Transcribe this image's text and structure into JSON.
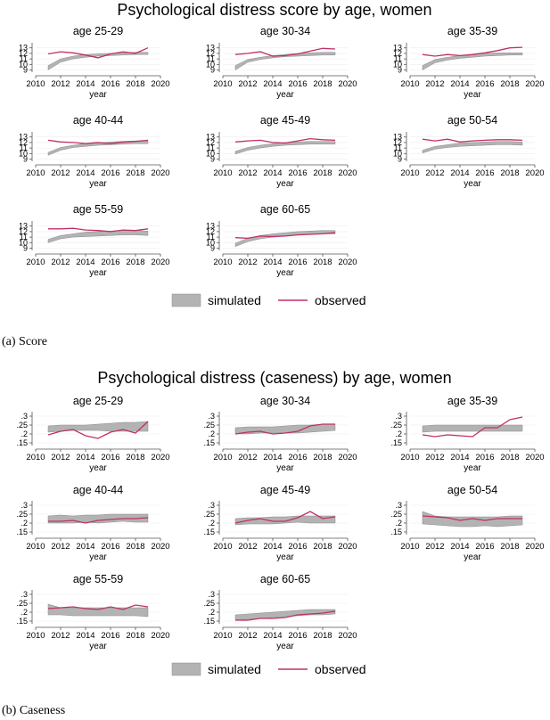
{
  "figure_a": {
    "title": "Psychological distress score by age, women",
    "caption": "(a)  Score",
    "legend": {
      "band_label": "simulated",
      "line_label": "observed"
    }
  },
  "figure_b": {
    "title": "Psychological distress (caseness) by age, women",
    "caption": "(b)  Caseness",
    "legend": {
      "band_label": "simulated",
      "line_label": "observed"
    }
  },
  "colors": {
    "band": "#b3b3b3",
    "band_stroke": "#8c8c8c",
    "line": "#c0306a",
    "axis": "#555555"
  },
  "chart_data": [
    {
      "type": "area",
      "figure": "a",
      "xlabel": "year",
      "xticks": [
        2010,
        2012,
        2014,
        2016,
        2018,
        2020
      ],
      "xlim": [
        2010,
        2020
      ],
      "yticks": [
        9,
        10,
        11,
        12,
        13
      ],
      "ytick_labels": [
        "9",
        "10",
        "11",
        "12",
        "13"
      ],
      "ylim": [
        8.6,
        13.6
      ],
      "x": [
        2011,
        2012,
        2013,
        2014,
        2015,
        2016,
        2017,
        2018,
        2019
      ],
      "panels": [
        {
          "title": "age 25-29",
          "band_low": [
            9.0,
            10.4,
            11.0,
            11.3,
            11.5,
            11.6,
            11.7,
            11.8,
            11.8
          ],
          "band_high": [
            9.8,
            11.0,
            11.5,
            11.8,
            11.9,
            12.0,
            12.1,
            12.2,
            12.2
          ],
          "observed": [
            11.9,
            12.3,
            12.1,
            11.7,
            11.2,
            11.9,
            12.3,
            12.0,
            13.0
          ]
        },
        {
          "title": "age 30-34",
          "band_low": [
            9.0,
            10.4,
            10.9,
            11.2,
            11.4,
            11.5,
            11.6,
            11.7,
            11.7
          ],
          "band_high": [
            9.8,
            10.9,
            11.3,
            11.6,
            11.8,
            12.0,
            12.1,
            12.2,
            12.2
          ],
          "observed": [
            11.8,
            12.0,
            12.3,
            11.5,
            11.6,
            11.9,
            12.4,
            12.9,
            12.8
          ]
        },
        {
          "title": "age 35-39",
          "band_low": [
            9.0,
            10.3,
            10.8,
            11.1,
            11.3,
            11.5,
            11.6,
            11.7,
            11.7
          ],
          "band_high": [
            9.8,
            10.9,
            11.3,
            11.6,
            11.8,
            12.0,
            12.1,
            12.1,
            12.1
          ],
          "observed": [
            11.8,
            11.5,
            11.8,
            11.6,
            11.8,
            12.1,
            12.5,
            13.0,
            13.1
          ]
        },
        {
          "title": "age 40-44",
          "band_low": [
            9.7,
            10.6,
            11.1,
            11.3,
            11.5,
            11.6,
            11.7,
            11.8,
            11.8
          ],
          "band_high": [
            10.2,
            11.1,
            11.5,
            11.8,
            11.9,
            12.1,
            12.2,
            12.3,
            12.3
          ],
          "observed": [
            12.4,
            12.1,
            12.0,
            11.8,
            12.0,
            11.8,
            12.1,
            12.2,
            12.4
          ]
        },
        {
          "title": "age 45-49",
          "band_low": [
            9.9,
            10.6,
            11.0,
            11.3,
            11.5,
            11.6,
            11.7,
            11.7,
            11.7
          ],
          "band_high": [
            10.4,
            11.1,
            11.5,
            11.8,
            12.0,
            12.1,
            12.2,
            12.2,
            12.2
          ],
          "observed": [
            12.1,
            12.3,
            12.4,
            12.0,
            11.9,
            12.3,
            12.7,
            12.5,
            12.4
          ]
        },
        {
          "title": "age 50-54",
          "band_low": [
            10.1,
            10.8,
            11.1,
            11.3,
            11.4,
            11.5,
            11.6,
            11.6,
            11.5
          ],
          "band_high": [
            10.6,
            11.3,
            11.6,
            11.9,
            12.0,
            12.1,
            12.2,
            12.2,
            12.1
          ],
          "observed": [
            12.6,
            12.3,
            12.6,
            12.1,
            12.3,
            12.4,
            12.5,
            12.5,
            12.4
          ]
        },
        {
          "title": "age 55-59",
          "band_low": [
            10.0,
            10.7,
            11.0,
            11.1,
            11.2,
            11.3,
            11.4,
            11.4,
            11.3
          ],
          "band_high": [
            10.6,
            11.3,
            11.6,
            11.9,
            12.0,
            12.1,
            12.2,
            12.2,
            12.1
          ],
          "observed": [
            12.5,
            12.5,
            12.6,
            12.3,
            12.2,
            12.0,
            12.3,
            12.2,
            12.5
          ]
        },
        {
          "title": "age 60-65",
          "band_low": [
            9.3,
            10.2,
            10.7,
            11.0,
            11.2,
            11.4,
            11.5,
            11.6,
            11.6
          ],
          "band_high": [
            9.9,
            10.8,
            11.3,
            11.6,
            11.8,
            12.0,
            12.1,
            12.2,
            12.2
          ],
          "observed": [
            10.9,
            10.8,
            11.2,
            11.1,
            11.2,
            11.4,
            11.5,
            11.6,
            11.8
          ]
        }
      ]
    },
    {
      "type": "area",
      "figure": "b",
      "xlabel": "year",
      "xticks": [
        2010,
        2012,
        2014,
        2016,
        2018,
        2020
      ],
      "xlim": [
        2010,
        2020
      ],
      "yticks": [
        0.15,
        0.2,
        0.25,
        0.3
      ],
      "ytick_labels": [
        ".15",
        ".2",
        ".25",
        ".3"
      ],
      "ylim": [
        0.135,
        0.315
      ],
      "x": [
        2011,
        2012,
        2013,
        2014,
        2015,
        2016,
        2017,
        2018,
        2019
      ],
      "panels": [
        {
          "title": "age 25-29",
          "band_low": [
            0.21,
            0.215,
            0.22,
            0.22,
            0.22,
            0.215,
            0.215,
            0.215,
            0.215
          ],
          "band_high": [
            0.245,
            0.25,
            0.25,
            0.25,
            0.255,
            0.26,
            0.265,
            0.265,
            0.27
          ],
          "observed": [
            0.195,
            0.215,
            0.225,
            0.19,
            0.175,
            0.21,
            0.225,
            0.205,
            0.27
          ]
        },
        {
          "title": "age 30-34",
          "band_low": [
            0.2,
            0.2,
            0.205,
            0.205,
            0.205,
            0.205,
            0.21,
            0.215,
            0.22
          ],
          "band_high": [
            0.235,
            0.24,
            0.24,
            0.24,
            0.245,
            0.25,
            0.25,
            0.255,
            0.255
          ],
          "observed": [
            0.2,
            0.21,
            0.215,
            0.2,
            0.205,
            0.215,
            0.245,
            0.255,
            0.255
          ]
        },
        {
          "title": "age 35-39",
          "band_low": [
            0.21,
            0.215,
            0.215,
            0.215,
            0.215,
            0.215,
            0.215,
            0.215,
            0.215
          ],
          "band_high": [
            0.245,
            0.25,
            0.25,
            0.25,
            0.25,
            0.25,
            0.25,
            0.25,
            0.25
          ],
          "observed": [
            0.195,
            0.185,
            0.195,
            0.19,
            0.185,
            0.235,
            0.235,
            0.28,
            0.295
          ]
        },
        {
          "title": "age 40-44",
          "band_low": [
            0.2,
            0.2,
            0.2,
            0.205,
            0.2,
            0.205,
            0.21,
            0.205,
            0.205
          ],
          "band_high": [
            0.24,
            0.245,
            0.24,
            0.245,
            0.245,
            0.25,
            0.25,
            0.25,
            0.25
          ],
          "observed": [
            0.21,
            0.21,
            0.215,
            0.2,
            0.215,
            0.22,
            0.225,
            0.225,
            0.23
          ]
        },
        {
          "title": "age 45-49",
          "band_low": [
            0.19,
            0.195,
            0.195,
            0.195,
            0.2,
            0.205,
            0.2,
            0.2,
            0.2
          ],
          "band_high": [
            0.225,
            0.23,
            0.23,
            0.235,
            0.235,
            0.24,
            0.24,
            0.24,
            0.24
          ],
          "observed": [
            0.2,
            0.215,
            0.225,
            0.21,
            0.21,
            0.23,
            0.265,
            0.225,
            0.235
          ]
        },
        {
          "title": "age 50-54",
          "band_low": [
            0.195,
            0.19,
            0.185,
            0.18,
            0.18,
            0.185,
            0.18,
            0.185,
            0.19
          ],
          "band_high": [
            0.265,
            0.24,
            0.235,
            0.235,
            0.235,
            0.235,
            0.235,
            0.24,
            0.24
          ],
          "observed": [
            0.24,
            0.235,
            0.23,
            0.215,
            0.225,
            0.215,
            0.225,
            0.225,
            0.225
          ]
        },
        {
          "title": "age 55-59",
          "band_low": [
            0.185,
            0.185,
            0.18,
            0.18,
            0.18,
            0.18,
            0.18,
            0.18,
            0.175
          ],
          "band_high": [
            0.245,
            0.225,
            0.225,
            0.225,
            0.225,
            0.225,
            0.225,
            0.225,
            0.225
          ],
          "observed": [
            0.22,
            0.225,
            0.23,
            0.22,
            0.215,
            0.23,
            0.215,
            0.24,
            0.23
          ]
        },
        {
          "title": "age 60-65",
          "band_low": [
            0.155,
            0.16,
            0.165,
            0.17,
            0.175,
            0.18,
            0.185,
            0.185,
            0.19
          ],
          "band_high": [
            0.185,
            0.19,
            0.195,
            0.2,
            0.205,
            0.21,
            0.215,
            0.215,
            0.215
          ],
          "observed": [
            0.155,
            0.155,
            0.165,
            0.165,
            0.17,
            0.185,
            0.19,
            0.195,
            0.205
          ]
        }
      ]
    }
  ]
}
